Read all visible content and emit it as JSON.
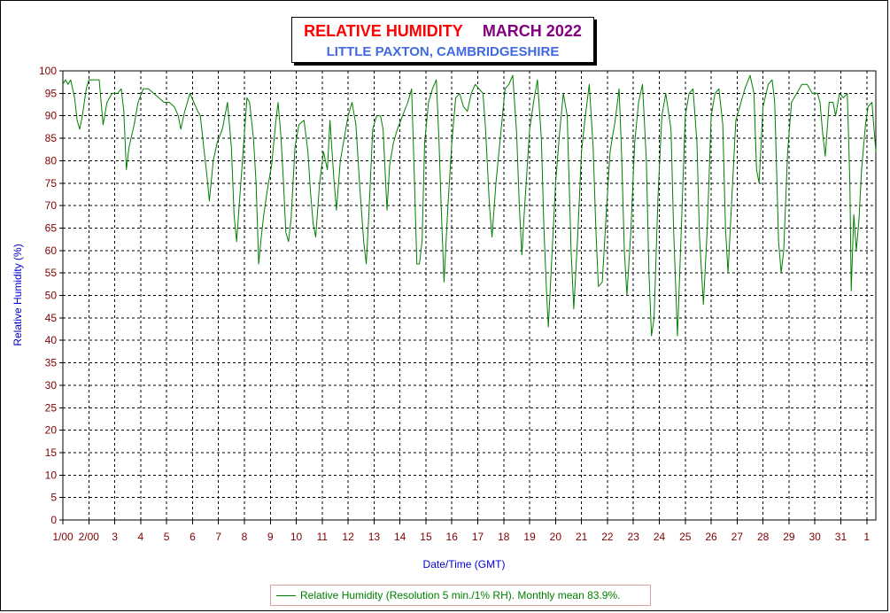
{
  "title": {
    "main": "RELATIVE HUMIDITY",
    "period": "MARCH 2022",
    "location": "LITTLE PAXTON, CAMBRIDGESHIRE"
  },
  "colors": {
    "title_main": "#ff0000",
    "title_period": "#800080",
    "location": "#4169e1",
    "axis_label": "#0000cc",
    "tick_label": "#800000",
    "series": "#008000",
    "grid": "#000000"
  },
  "legend": {
    "text": "Relative Humidity (Resolution 5 min./1% RH). Monthly mean 83.9%."
  },
  "chart_data": {
    "type": "line",
    "title": "RELATIVE HUMIDITY    MARCH 2022",
    "subtitle": "LITTLE PAXTON, CAMBRIDGESHIRE",
    "xlabel": "Date/Time (GMT)",
    "ylabel": "Relative Humidity (%)",
    "ylim": [
      0,
      100
    ],
    "y_ticks": [
      0,
      5,
      10,
      15,
      20,
      25,
      30,
      35,
      40,
      45,
      50,
      55,
      60,
      65,
      70,
      75,
      80,
      85,
      90,
      95,
      100
    ],
    "xlim": [
      1,
      32.35
    ],
    "x_ticks": [
      {
        "x": 1,
        "label": "1/00"
      },
      {
        "x": 2,
        "label": "2/00"
      },
      {
        "x": 3,
        "label": "3"
      },
      {
        "x": 4,
        "label": "4"
      },
      {
        "x": 5,
        "label": "5"
      },
      {
        "x": 6,
        "label": "6"
      },
      {
        "x": 7,
        "label": "7"
      },
      {
        "x": 8,
        "label": "8"
      },
      {
        "x": 9,
        "label": "9"
      },
      {
        "x": 10,
        "label": "10"
      },
      {
        "x": 11,
        "label": "11"
      },
      {
        "x": 12,
        "label": "12"
      },
      {
        "x": 13,
        "label": "13"
      },
      {
        "x": 14,
        "label": "14"
      },
      {
        "x": 15,
        "label": "15"
      },
      {
        "x": 16,
        "label": "16"
      },
      {
        "x": 17,
        "label": "17"
      },
      {
        "x": 18,
        "label": "18"
      },
      {
        "x": 19,
        "label": "19"
      },
      {
        "x": 20,
        "label": "20"
      },
      {
        "x": 21,
        "label": "21"
      },
      {
        "x": 22,
        "label": "22"
      },
      {
        "x": 23,
        "label": "23"
      },
      {
        "x": 24,
        "label": "24"
      },
      {
        "x": 25,
        "label": "25"
      },
      {
        "x": 26,
        "label": "26"
      },
      {
        "x": 27,
        "label": "27"
      },
      {
        "x": 28,
        "label": "28"
      },
      {
        "x": 29,
        "label": "29"
      },
      {
        "x": 30,
        "label": "30"
      },
      {
        "x": 31,
        "label": "31"
      },
      {
        "x": 32,
        "label": "1"
      }
    ],
    "grid": true,
    "legend_position": "bottom-center",
    "series": [
      {
        "name": "Relative Humidity (Resolution 5 min./1% RH). Monthly mean 83.9%.",
        "points": [
          [
            1.0,
            97
          ],
          [
            1.1,
            98
          ],
          [
            1.2,
            97
          ],
          [
            1.3,
            98
          ],
          [
            1.45,
            94
          ],
          [
            1.55,
            89
          ],
          [
            1.65,
            87
          ],
          [
            1.75,
            90
          ],
          [
            1.9,
            96
          ],
          [
            2.0,
            98
          ],
          [
            2.2,
            98
          ],
          [
            2.4,
            98
          ],
          [
            2.55,
            88
          ],
          [
            2.7,
            93
          ],
          [
            2.9,
            95
          ],
          [
            3.1,
            95
          ],
          [
            3.25,
            96
          ],
          [
            3.35,
            91
          ],
          [
            3.45,
            78
          ],
          [
            3.55,
            83
          ],
          [
            3.75,
            88
          ],
          [
            3.9,
            93
          ],
          [
            4.1,
            96
          ],
          [
            4.3,
            96
          ],
          [
            4.5,
            95
          ],
          [
            4.7,
            94
          ],
          [
            4.9,
            93
          ],
          [
            5.1,
            93
          ],
          [
            5.3,
            92
          ],
          [
            5.45,
            90
          ],
          [
            5.55,
            87
          ],
          [
            5.7,
            91
          ],
          [
            5.9,
            95
          ],
          [
            6.05,
            93
          ],
          [
            6.2,
            91
          ],
          [
            6.3,
            90
          ],
          [
            6.45,
            82
          ],
          [
            6.55,
            77
          ],
          [
            6.65,
            71
          ],
          [
            6.8,
            80
          ],
          [
            6.95,
            84
          ],
          [
            7.15,
            87
          ],
          [
            7.35,
            93
          ],
          [
            7.5,
            83
          ],
          [
            7.6,
            68
          ],
          [
            7.7,
            62
          ],
          [
            7.8,
            70
          ],
          [
            7.95,
            82
          ],
          [
            8.1,
            94
          ],
          [
            8.2,
            93
          ],
          [
            8.35,
            85
          ],
          [
            8.45,
            75
          ],
          [
            8.55,
            57
          ],
          [
            8.65,
            63
          ],
          [
            8.75,
            68
          ],
          [
            8.9,
            74
          ],
          [
            9.05,
            79
          ],
          [
            9.2,
            88
          ],
          [
            9.3,
            93
          ],
          [
            9.4,
            86
          ],
          [
            9.5,
            76
          ],
          [
            9.6,
            64
          ],
          [
            9.7,
            62
          ],
          [
            9.8,
            67
          ],
          [
            9.95,
            83
          ],
          [
            10.1,
            88
          ],
          [
            10.3,
            89
          ],
          [
            10.45,
            82
          ],
          [
            10.55,
            73
          ],
          [
            10.65,
            66
          ],
          [
            10.75,
            63
          ],
          [
            10.9,
            75
          ],
          [
            11.05,
            82
          ],
          [
            11.2,
            78
          ],
          [
            11.3,
            89
          ],
          [
            11.45,
            76
          ],
          [
            11.55,
            69
          ],
          [
            11.7,
            80
          ],
          [
            11.85,
            85
          ],
          [
            12.0,
            90
          ],
          [
            12.15,
            93
          ],
          [
            12.3,
            88
          ],
          [
            12.45,
            74
          ],
          [
            12.6,
            62
          ],
          [
            12.7,
            57
          ],
          [
            12.8,
            68
          ],
          [
            12.95,
            87
          ],
          [
            13.1,
            90
          ],
          [
            13.25,
            90
          ],
          [
            13.35,
            87
          ],
          [
            13.5,
            69
          ],
          [
            13.6,
            79
          ],
          [
            13.75,
            84
          ],
          [
            13.9,
            87
          ],
          [
            14.1,
            90
          ],
          [
            14.3,
            93
          ],
          [
            14.45,
            96
          ],
          [
            14.55,
            77
          ],
          [
            14.65,
            57
          ],
          [
            14.75,
            57
          ],
          [
            14.85,
            62
          ],
          [
            14.95,
            84
          ],
          [
            15.1,
            93
          ],
          [
            15.25,
            96
          ],
          [
            15.4,
            98
          ],
          [
            15.5,
            85
          ],
          [
            15.6,
            68
          ],
          [
            15.7,
            53
          ],
          [
            15.85,
            70
          ],
          [
            16.0,
            84
          ],
          [
            16.15,
            94
          ],
          [
            16.3,
            95
          ],
          [
            16.45,
            92
          ],
          [
            16.6,
            91
          ],
          [
            16.75,
            95
          ],
          [
            16.9,
            97
          ],
          [
            17.05,
            96
          ],
          [
            17.2,
            95
          ],
          [
            17.3,
            87
          ],
          [
            17.45,
            70
          ],
          [
            17.55,
            63
          ],
          [
            17.7,
            75
          ],
          [
            17.9,
            87
          ],
          [
            18.05,
            96
          ],
          [
            18.2,
            97
          ],
          [
            18.35,
            99
          ],
          [
            18.5,
            86
          ],
          [
            18.6,
            70
          ],
          [
            18.7,
            59
          ],
          [
            18.8,
            69
          ],
          [
            19.0,
            87
          ],
          [
            19.15,
            93
          ],
          [
            19.3,
            98
          ],
          [
            19.45,
            85
          ],
          [
            19.55,
            65
          ],
          [
            19.65,
            51
          ],
          [
            19.72,
            43
          ],
          [
            19.85,
            58
          ],
          [
            20.0,
            75
          ],
          [
            20.15,
            86
          ],
          [
            20.3,
            95
          ],
          [
            20.45,
            90
          ],
          [
            20.6,
            60
          ],
          [
            20.7,
            47
          ],
          [
            20.85,
            63
          ],
          [
            21.0,
            82
          ],
          [
            21.15,
            90
          ],
          [
            21.3,
            97
          ],
          [
            21.45,
            83
          ],
          [
            21.55,
            65
          ],
          [
            21.65,
            52
          ],
          [
            21.8,
            53
          ],
          [
            21.95,
            68
          ],
          [
            22.1,
            82
          ],
          [
            22.3,
            89
          ],
          [
            22.45,
            96
          ],
          [
            22.55,
            81
          ],
          [
            22.65,
            60
          ],
          [
            22.75,
            50
          ],
          [
            22.9,
            64
          ],
          [
            23.05,
            84
          ],
          [
            23.2,
            93
          ],
          [
            23.35,
            97
          ],
          [
            23.5,
            80
          ],
          [
            23.6,
            55
          ],
          [
            23.7,
            41
          ],
          [
            23.8,
            45
          ],
          [
            23.95,
            72
          ],
          [
            24.1,
            90
          ],
          [
            24.25,
            95
          ],
          [
            24.45,
            87
          ],
          [
            24.55,
            65
          ],
          [
            24.7,
            41
          ],
          [
            24.85,
            65
          ],
          [
            25.0,
            90
          ],
          [
            25.15,
            95
          ],
          [
            25.3,
            96
          ],
          [
            25.45,
            84
          ],
          [
            25.55,
            63
          ],
          [
            25.7,
            48
          ],
          [
            25.85,
            65
          ],
          [
            26.0,
            90
          ],
          [
            26.15,
            95
          ],
          [
            26.3,
            96
          ],
          [
            26.45,
            88
          ],
          [
            26.55,
            65
          ],
          [
            26.65,
            55
          ],
          [
            26.8,
            72
          ],
          [
            26.95,
            89
          ],
          [
            27.1,
            92
          ],
          [
            27.3,
            96
          ],
          [
            27.5,
            99
          ],
          [
            27.65,
            95
          ],
          [
            27.75,
            78
          ],
          [
            27.85,
            75
          ],
          [
            28.0,
            92
          ],
          [
            28.2,
            97
          ],
          [
            28.35,
            98
          ],
          [
            28.45,
            93
          ],
          [
            28.6,
            62
          ],
          [
            28.7,
            55
          ],
          [
            28.8,
            60
          ],
          [
            28.95,
            82
          ],
          [
            29.1,
            93
          ],
          [
            29.3,
            95
          ],
          [
            29.5,
            97
          ],
          [
            29.7,
            97
          ],
          [
            29.9,
            95
          ],
          [
            30.1,
            95
          ],
          [
            30.2,
            93
          ],
          [
            30.3,
            86
          ],
          [
            30.4,
            81
          ],
          [
            30.55,
            93
          ],
          [
            30.7,
            93
          ],
          [
            30.8,
            90
          ],
          [
            30.95,
            95
          ],
          [
            31.1,
            94
          ],
          [
            31.25,
            95
          ],
          [
            31.35,
            75
          ],
          [
            31.4,
            51
          ],
          [
            31.5,
            68
          ],
          [
            31.6,
            60
          ],
          [
            31.7,
            67
          ],
          [
            31.8,
            78
          ],
          [
            31.95,
            88
          ],
          [
            32.05,
            92
          ],
          [
            32.2,
            93
          ],
          [
            32.35,
            82
          ]
        ]
      }
    ]
  }
}
